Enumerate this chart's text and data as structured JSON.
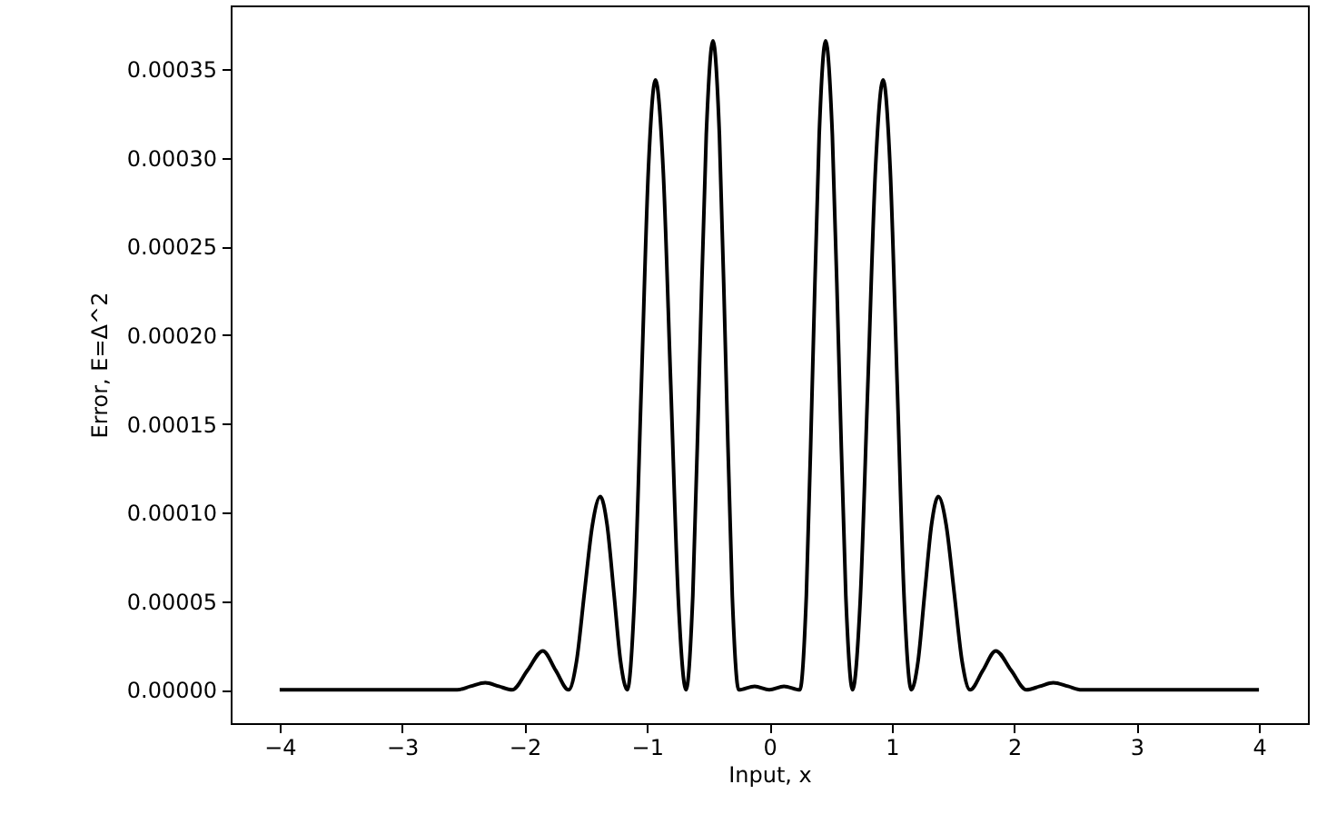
{
  "chart_data": {
    "type": "line",
    "xlabel": "Input, x",
    "ylabel": "Error, E=Δ^2",
    "xlim": [
      -4.4,
      4.4
    ],
    "xticks": [
      {
        "value": -4,
        "label": "−4"
      },
      {
        "value": -3,
        "label": "−3"
      },
      {
        "value": -2,
        "label": "−2"
      },
      {
        "value": -1,
        "label": "−1"
      },
      0,
      1,
      2,
      3,
      4
    ],
    "ylim": [
      -1.88e-05,
      0.000386
    ],
    "yticks": [
      {
        "value": 0,
        "label": "0.00000"
      },
      {
        "value": 5e-05,
        "label": "0.00005"
      },
      {
        "value": 0.0001,
        "label": "0.00010"
      },
      {
        "value": 0.00015,
        "label": "0.00015"
      },
      {
        "value": 0.0002,
        "label": "0.00020"
      },
      {
        "value": 0.00025,
        "label": "0.00025"
      },
      {
        "value": 0.0003,
        "label": "0.00030"
      },
      {
        "value": 0.00035,
        "label": "0.00035"
      }
    ],
    "grid": false,
    "marker": "none",
    "line_style": "solid",
    "series": [
      {
        "color": "#000000",
        "x": [
          -4,
          -3,
          -2.8,
          -2.55,
          -2.44,
          -2.32,
          -2.21,
          -2.1,
          -1.975,
          -1.85,
          -1.745,
          -1.64,
          -1.575,
          -1.51,
          -1.445,
          -1.38,
          -1.325,
          -1.27,
          -1.215,
          -1.16,
          -1.1025,
          -1.045,
          -0.9875,
          -0.93,
          -0.8675,
          -0.805,
          -0.7425,
          -0.68,
          -0.625,
          -0.57,
          -0.515,
          -0.46,
          -0.4075,
          -0.355,
          -0.3025,
          -0.25,
          -0.12,
          0,
          0.12,
          0.25,
          0.3025,
          0.355,
          0.4075,
          0.46,
          0.515,
          0.57,
          0.625,
          0.68,
          0.7425,
          0.805,
          0.8675,
          0.93,
          0.9875,
          1.045,
          1.1025,
          1.16,
          1.215,
          1.27,
          1.325,
          1.38,
          1.445,
          1.51,
          1.575,
          1.64,
          1.745,
          1.85,
          1.975,
          2.1,
          2.21,
          2.32,
          2.44,
          2.55,
          2.8,
          3,
          4
        ],
        "values": [
          0,
          0,
          0,
          0,
          2e-06,
          4e-06,
          2e-06,
          0,
          1.1e-05,
          2.2e-05,
          1.1e-05,
          0,
          1.6e-05,
          5.5e-05,
          9.3e-05,
          0.000109,
          9.3e-05,
          5.5e-05,
          1.6e-05,
          0,
          5e-05,
          0.000172,
          0.000294,
          0.000344,
          0.000294,
          0.000172,
          5e-05,
          0,
          5.3e-05,
          0.000183,
          0.000313,
          0.000366,
          0.000313,
          0.000183,
          5.3e-05,
          0,
          2e-06,
          0,
          2e-06,
          0,
          5.3e-05,
          0.000183,
          0.000313,
          0.000366,
          0.000313,
          0.000183,
          5.3e-05,
          0,
          5e-05,
          0.000172,
          0.000294,
          0.000344,
          0.000294,
          0.000172,
          5e-05,
          0,
          1.6e-05,
          5.5e-05,
          9.3e-05,
          0.000109,
          9.3e-05,
          5.5e-05,
          1.6e-05,
          0,
          1.1e-05,
          2.2e-05,
          1.1e-05,
          0,
          2e-06,
          4e-06,
          2e-06,
          0,
          0,
          0,
          0
        ]
      }
    ]
  }
}
